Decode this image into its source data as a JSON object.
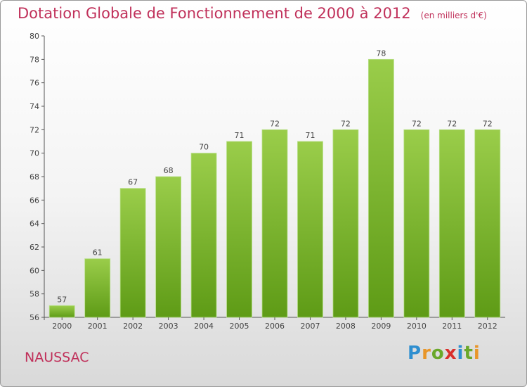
{
  "title": "Dotation Globale de Fonctionnement de 2000 à 2012",
  "title_unit": "(en milliers d'€)",
  "commune": "NAUSSAC",
  "logo_text": "Proxiti",
  "colors": {
    "title": "#c0305a",
    "bar_top": "#9acd4a",
    "bar_bottom": "#5e9b16",
    "logo": [
      "#2f8fd0",
      "#e8962a",
      "#6aa82a",
      "#d9302c",
      "#2f8fd0",
      "#6aa82a",
      "#e8962a"
    ]
  },
  "chart_data": {
    "type": "bar",
    "categories": [
      "2000",
      "2001",
      "2002",
      "2003",
      "2004",
      "2005",
      "2006",
      "2007",
      "2008",
      "2009",
      "2010",
      "2011",
      "2012"
    ],
    "values": [
      57,
      61,
      67,
      68,
      70,
      71,
      72,
      71,
      72,
      78,
      72,
      72,
      72
    ],
    "title": "Dotation Globale de Fonctionnement de 2000 à 2012",
    "xlabel": "",
    "ylabel": "",
    "ylim": [
      56,
      80
    ],
    "yticks": [
      56,
      58,
      60,
      62,
      64,
      66,
      68,
      70,
      72,
      74,
      76,
      78,
      80
    ],
    "grid": false,
    "data_labels": true
  }
}
